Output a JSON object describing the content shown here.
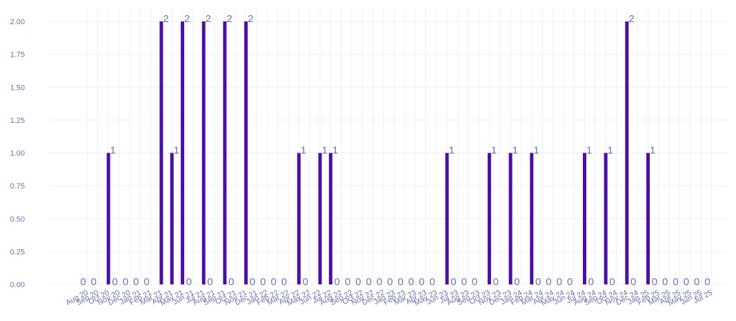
{
  "chart_data": {
    "type": "bar",
    "title": "",
    "xlabel": "",
    "ylabel": "",
    "ylim": [
      0,
      2.1
    ],
    "y_ticks": [
      "0.00",
      "0.25",
      "0.50",
      "0.75",
      "1.00",
      "1.25",
      "1.50",
      "1.75",
      "2.00"
    ],
    "y_tick_values": [
      0,
      0.25,
      0.5,
      0.75,
      1.0,
      1.25,
      1.5,
      1.75,
      2.0
    ],
    "grid": true,
    "legend": "none",
    "colors": {
      "bar": "#4b0fa5",
      "label": "#6d71a8",
      "tick": "#6a6fa6",
      "grid": "#eeeef8"
    },
    "categories": [
      "Aug 20",
      "Sep 20",
      "Oct 20",
      "Nov 20",
      "Dec 20",
      "Jan 21",
      "Feb 21",
      "Mar 21",
      "Apr 21",
      "May 21",
      "Jun 21",
      "Jul 21",
      "Aug 21",
      "Sep 21",
      "Oct 21",
      "Nov 21",
      "Dec 21",
      "Jan 22",
      "Feb 22",
      "Mar 22",
      "Apr 22",
      "May 22",
      "Jun 22",
      "Jul 22",
      "Aug 22",
      "Sep 22",
      "Oct 22",
      "Nov 22",
      "Dec 22",
      "Jan 23",
      "Feb 23",
      "Mar 23",
      "Apr 23",
      "May 23",
      "Jun 23",
      "Jul 23",
      "Aug 23",
      "Sep 23",
      "Oct 23",
      "Nov 23",
      "Dec 23",
      "Jan 24",
      "Feb 24",
      "Mar 24",
      "Apr 24",
      "May 24",
      "Jun 24",
      "Jul 24",
      "Aug 24",
      "Sep 24",
      "Oct 24",
      "Nov 24",
      "Dec 24",
      "Jan 25",
      "Feb 25",
      "Mar 25",
      "Apr 25",
      "May 25",
      "Jun 25",
      "Jul 25"
    ],
    "values": [
      0,
      0,
      1,
      0,
      0,
      0,
      0,
      2,
      1,
      2,
      0,
      2,
      0,
      2,
      0,
      2,
      0,
      0,
      0,
      0,
      1,
      0,
      1,
      1,
      0,
      0,
      0,
      0,
      0,
      0,
      0,
      0,
      0,
      0,
      1,
      0,
      0,
      0,
      1,
      0,
      1,
      0,
      1,
      0,
      0,
      0,
      0,
      1,
      0,
      1,
      0,
      2,
      0,
      1,
      0,
      0,
      0,
      0,
      0,
      0
    ]
  }
}
